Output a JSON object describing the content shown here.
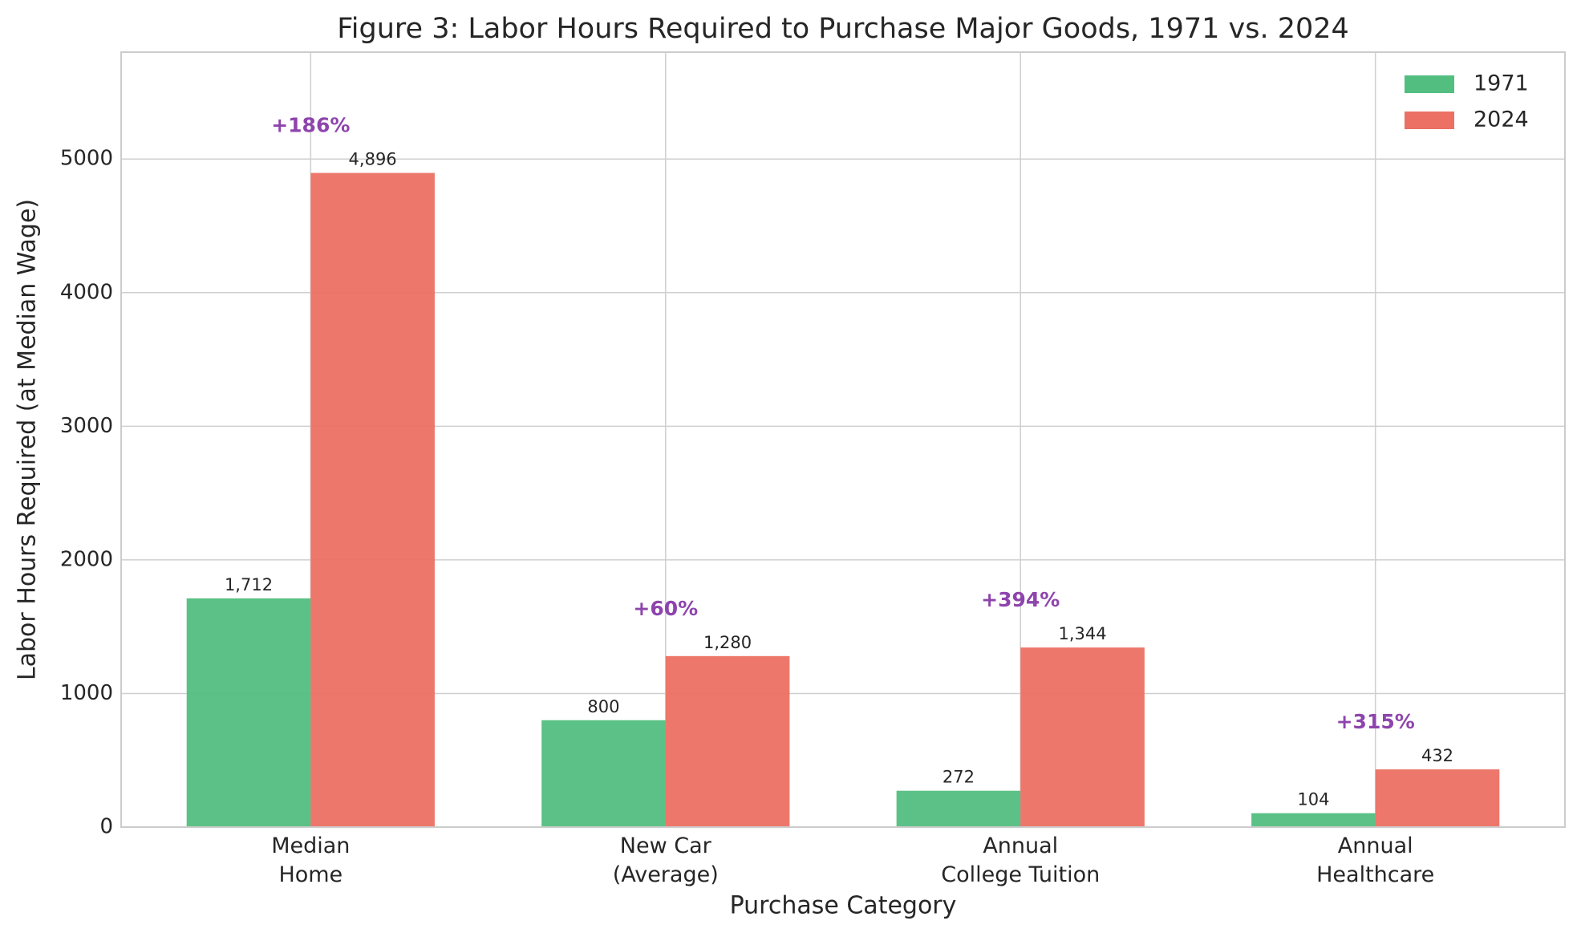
{
  "chart_data": {
    "type": "bar",
    "title": "Figure 3: Labor Hours Required to Purchase Major Goods, 1971 vs. 2024",
    "xlabel": "Purchase Category",
    "ylabel": "Labor Hours Required (at Median Wage)",
    "categories": [
      "Median\nHome",
      "New Car\n(Average)",
      "Annual\nCollege Tuition",
      "Annual\nHealthcare"
    ],
    "series": [
      {
        "name": "1971",
        "color": "#52be80",
        "values": [
          1712,
          800,
          272,
          104
        ],
        "value_labels": [
          "1,712",
          "800",
          "272",
          "104"
        ]
      },
      {
        "name": "2024",
        "color": "#ec7063",
        "values": [
          4896,
          1280,
          1344,
          432
        ],
        "value_labels": [
          "4,896",
          "1,280",
          "1,344",
          "432"
        ]
      }
    ],
    "annotations": [
      "+186%",
      "+60%",
      "+394%",
      "+315%"
    ],
    "annotation_color": "#8e44ad",
    "ylim": [
      0,
      5800
    ],
    "yticks": [
      0,
      1000,
      2000,
      3000,
      4000,
      5000
    ],
    "grid": true,
    "legend": "upper right"
  }
}
